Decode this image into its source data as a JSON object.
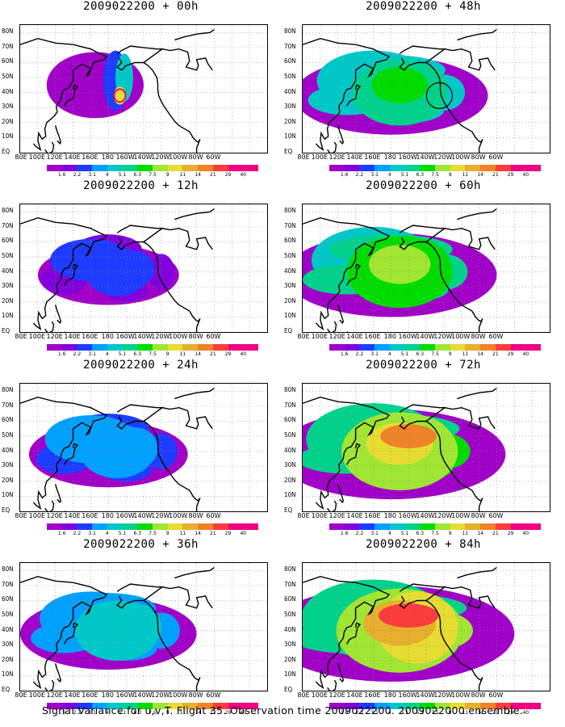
{
  "panels": [
    {
      "title": "2009022200 + 00h",
      "level": 0
    },
    {
      "title": "2009022200 + 48h",
      "level": 4
    },
    {
      "title": "2009022200 + 12h",
      "level": 1
    },
    {
      "title": "2009022200 + 60h",
      "level": 5
    },
    {
      "title": "2009022200 + 24h",
      "level": 2
    },
    {
      "title": "2009022200 + 72h",
      "level": 6
    },
    {
      "title": "2009022200 + 36h",
      "level": 3
    },
    {
      "title": "2009022200 + 84h",
      "level": 7
    }
  ],
  "lat_labels": [
    "80N",
    "70N",
    "60N",
    "50N",
    "40N",
    "30N",
    "20N",
    "10N",
    "EQ"
  ],
  "lon_labels": [
    "80E",
    "100E",
    "120E",
    "140E",
    "160E",
    "180",
    "160W",
    "140W",
    "120W",
    "100W",
    "80W",
    "60W"
  ],
  "colorbar": {
    "labels": [
      "1.6",
      "2.2",
      "3.1",
      "4",
      "5.1",
      "6.3",
      "7.5",
      "9",
      "11",
      "14",
      "21",
      "29",
      "40"
    ],
    "colors": [
      "#a000c8",
      "#8200dc",
      "#1e3cff",
      "#00a0ff",
      "#00c8c8",
      "#00d28c",
      "#00dc00",
      "#a0e632",
      "#e6dc32",
      "#e6af2d",
      "#f08228",
      "#fa3c3c",
      "#f00082"
    ]
  },
  "caption": "Signal Variance for u,v,T. Flight 35. Observation time 2009022200. 2009022000 ensemble."
}
